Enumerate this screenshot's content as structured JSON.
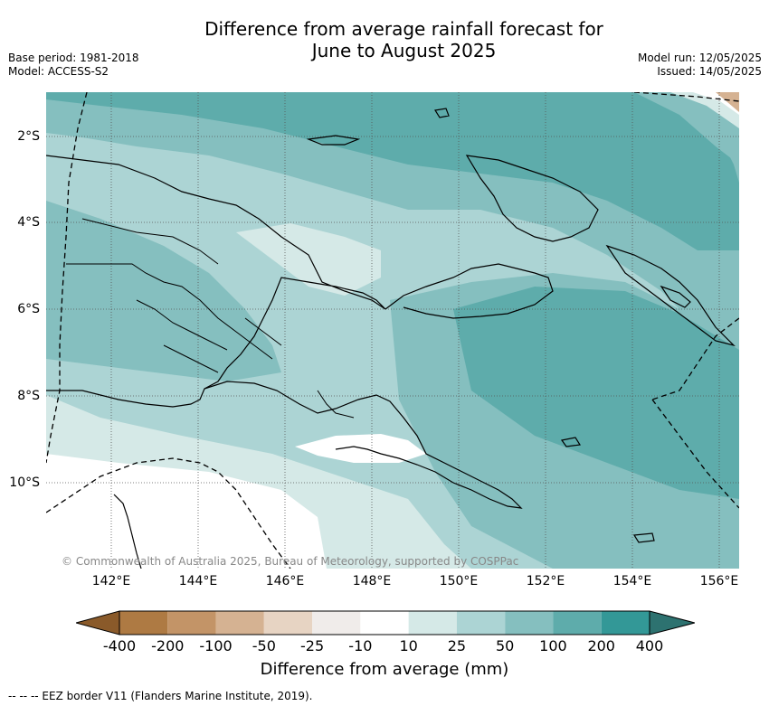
{
  "title_line1": "Difference from average rainfall forecast for",
  "title_line2": "June to August 2025",
  "base_period": "Base period: 1981-2018",
  "model": "Model: ACCESS-S2",
  "model_run": "Model run: 12/05/2025",
  "issued": "Issued: 14/05/2025",
  "copyright": "© Commonwealth of Australia 2025, Bureau of Meteorology, supported by COSPPac",
  "x_ticks": [
    "142°E",
    "144°E",
    "146°E",
    "148°E",
    "150°E",
    "152°E",
    "154°E",
    "156°E"
  ],
  "y_ticks": [
    "2°S",
    "4°S",
    "6°S",
    "8°S",
    "10°S"
  ],
  "colorbar": {
    "title": "Difference from average (mm)",
    "ticks": [
      "-400",
      "-200",
      "-100",
      "-50",
      "-25",
      "-10",
      "10",
      "25",
      "50",
      "100",
      "200",
      "400"
    ],
    "colors": [
      "#8a5a2a",
      "#ae7a43",
      "#c39467",
      "#d5b292",
      "#e7d4c3",
      "#f0ecea",
      "#ffffff",
      "#d5e9e7",
      "#acd4d4",
      "#85bfbf",
      "#5eacab",
      "#339897",
      "#2d7270"
    ]
  },
  "footnote": "--  --  -- EEZ border V11 (Flanders Marine Institute, 2019)."
}
